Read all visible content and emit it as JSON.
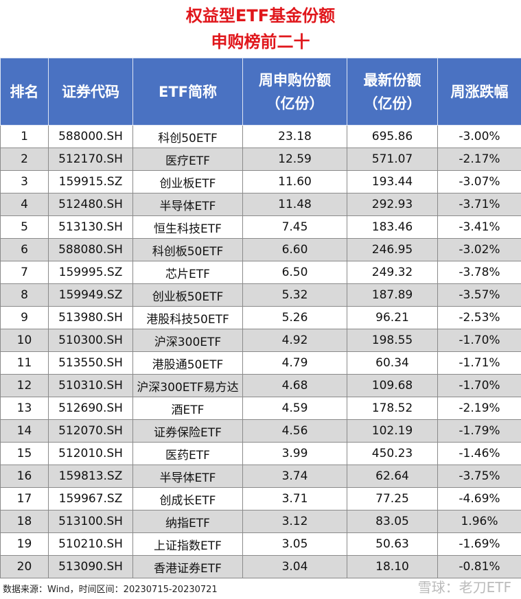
{
  "header": {
    "title": "权益型ETF基金份额",
    "subtitle": "申购榜前二十"
  },
  "table": {
    "columns": [
      [
        "排名"
      ],
      [
        "证券代码"
      ],
      [
        "ETF简称"
      ],
      [
        "周申购份额",
        "（亿份）"
      ],
      [
        "最新份额",
        "（亿份）"
      ],
      [
        "周涨跌幅"
      ]
    ],
    "rows": [
      [
        "1",
        "588000.SH",
        "科创50ETF",
        "23.18",
        "695.86",
        "-3.00%"
      ],
      [
        "2",
        "512170.SH",
        "医疗ETF",
        "12.59",
        "571.07",
        "-2.17%"
      ],
      [
        "3",
        "159915.SZ",
        "创业板ETF",
        "11.60",
        "193.44",
        "-3.07%"
      ],
      [
        "4",
        "512480.SH",
        "半导体ETF",
        "11.48",
        "292.93",
        "-3.71%"
      ],
      [
        "5",
        "513130.SH",
        "恒生科技ETF",
        "7.45",
        "183.46",
        "-3.41%"
      ],
      [
        "6",
        "588080.SH",
        "科创板50ETF",
        "6.60",
        "246.95",
        "-3.02%"
      ],
      [
        "7",
        "159995.SZ",
        "芯片ETF",
        "6.50",
        "249.32",
        "-3.78%"
      ],
      [
        "8",
        "159949.SZ",
        "创业板50ETF",
        "5.32",
        "187.89",
        "-3.57%"
      ],
      [
        "9",
        "513980.SH",
        "港股科技50ETF",
        "5.26",
        "96.21",
        "-2.53%"
      ],
      [
        "10",
        "510300.SH",
        "沪深300ETF",
        "4.92",
        "198.55",
        "-1.70%"
      ],
      [
        "11",
        "513550.SH",
        "港股通50ETF",
        "4.79",
        "60.34",
        "-1.71%"
      ],
      [
        "12",
        "510310.SH",
        "沪深300ETF易方达",
        "4.68",
        "109.68",
        "-1.70%"
      ],
      [
        "13",
        "512690.SH",
        "酒ETF",
        "4.59",
        "178.52",
        "-2.19%"
      ],
      [
        "14",
        "512070.SH",
        "证券保险ETF",
        "4.56",
        "102.19",
        "-1.79%"
      ],
      [
        "15",
        "512010.SH",
        "医药ETF",
        "3.99",
        "450.23",
        "-1.46%"
      ],
      [
        "16",
        "159813.SZ",
        "半导体ETF",
        "3.74",
        "62.64",
        "-3.75%"
      ],
      [
        "17",
        "159967.SZ",
        "创成长ETF",
        "3.71",
        "77.25",
        "-4.69%"
      ],
      [
        "18",
        "513100.SH",
        "纳指ETF",
        "3.12",
        "83.05",
        "1.96%"
      ],
      [
        "19",
        "510210.SH",
        "上证指数ETF",
        "3.05",
        "50.63",
        "-1.69%"
      ],
      [
        "20",
        "513090.SH",
        "香港证券ETF",
        "3.04",
        "18.10",
        "-0.81%"
      ]
    ]
  },
  "footer": {
    "source": "数据来源：Wind，时间区间：20230715-20230721",
    "watermark": "雪球：老刀ETF"
  }
}
